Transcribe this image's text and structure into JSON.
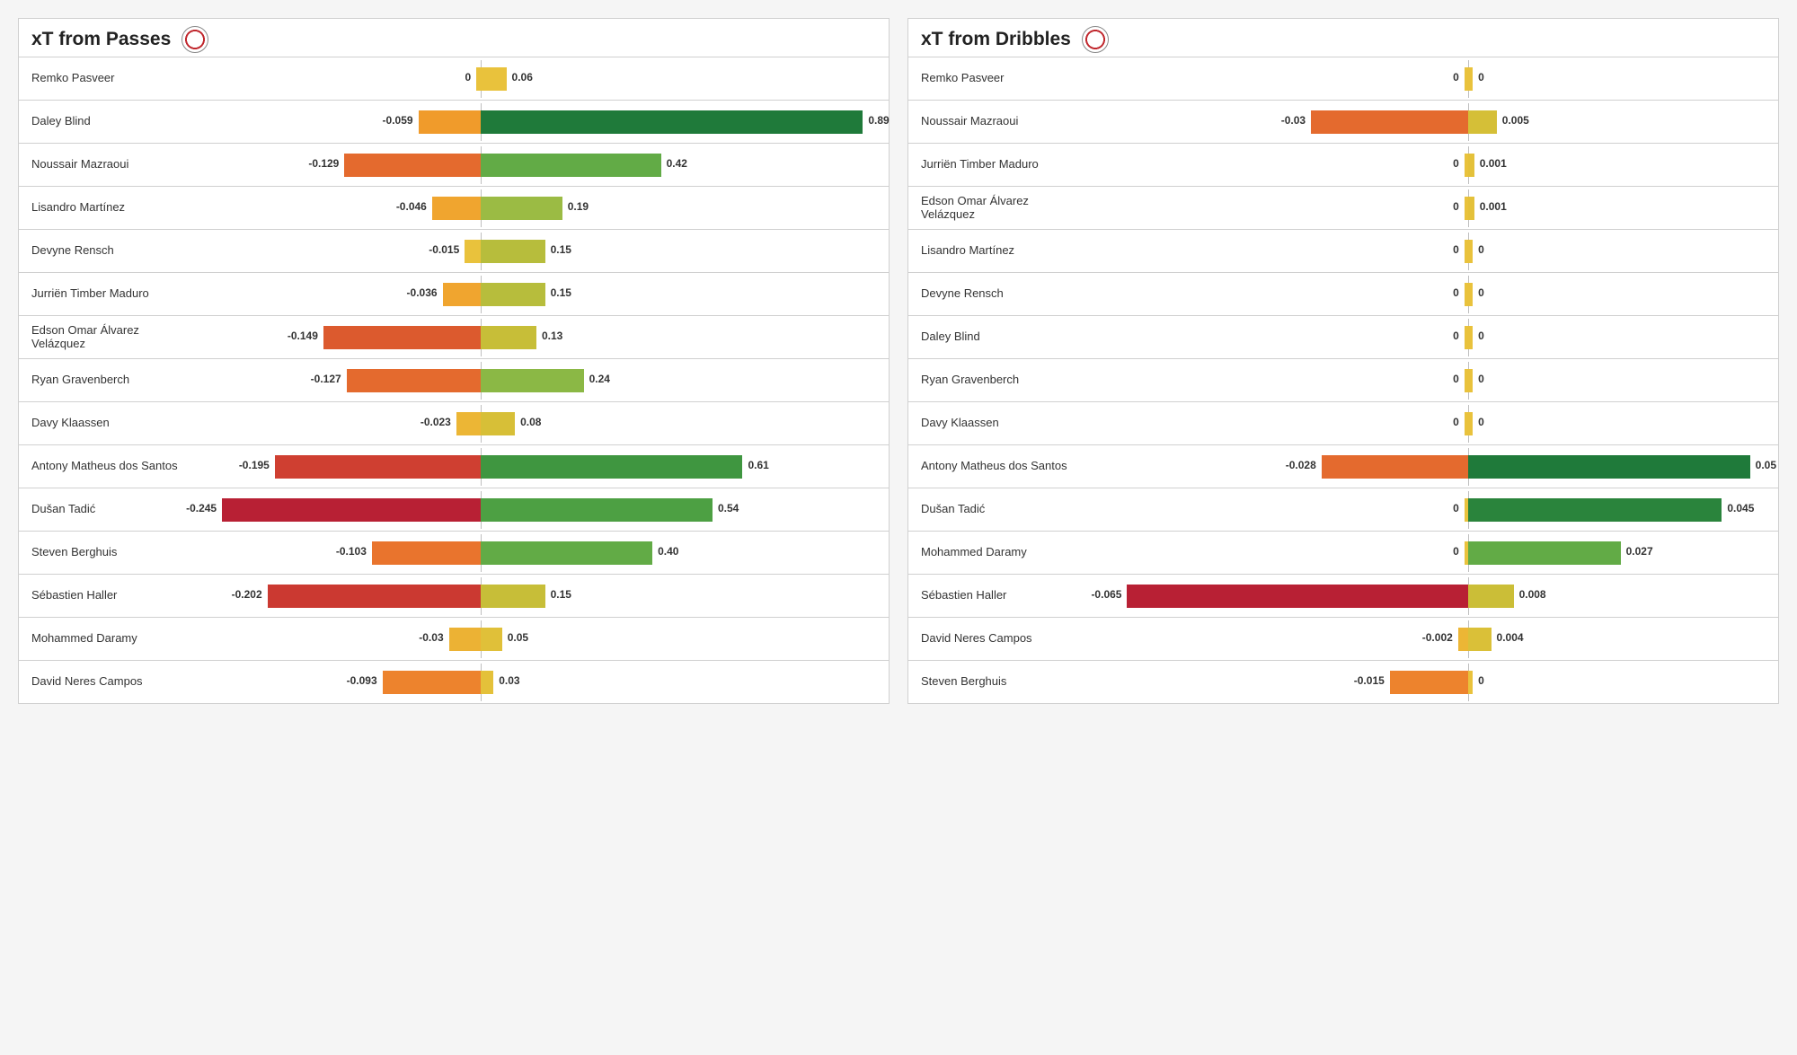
{
  "panels": [
    {
      "title": "xT from Passes",
      "negMax": 0.28,
      "posMax": 0.95,
      "axisFrac": 0.42,
      "rows": [
        {
          "name": "Remko Pasveer",
          "neg": 0,
          "negLabel": "0",
          "pos": 0.06,
          "posLabel": "0.06",
          "negColor": "#e9c23c",
          "posColor": "#e9c23c"
        },
        {
          "name": "Daley Blind",
          "neg": 0.059,
          "negLabel": "-0.059",
          "pos": 0.89,
          "posLabel": "0.89",
          "negColor": "#f09b2b",
          "posColor": "#1f7a3a"
        },
        {
          "name": "Noussair Mazraoui",
          "neg": 0.129,
          "negLabel": "-0.129",
          "pos": 0.42,
          "posLabel": "0.42",
          "negColor": "#e46a2e",
          "posColor": "#62ab46"
        },
        {
          "name": "Lisandro Martínez",
          "neg": 0.046,
          "negLabel": "-0.046",
          "pos": 0.19,
          "posLabel": "0.19",
          "negColor": "#f0a52f",
          "posColor": "#9bbb44"
        },
        {
          "name": "Devyne Rensch",
          "neg": 0.015,
          "negLabel": "-0.015",
          "pos": 0.15,
          "posLabel": "0.15",
          "negColor": "#e9c23c",
          "posColor": "#b7bd3c"
        },
        {
          "name": "Jurriën Timber Maduro",
          "neg": 0.036,
          "negLabel": "-0.036",
          "pos": 0.15,
          "posLabel": "0.15",
          "negColor": "#f0a52f",
          "posColor": "#b7bd3c"
        },
        {
          "name": "Edson Omar Álvarez Velázquez",
          "neg": 0.149,
          "negLabel": "-0.149",
          "pos": 0.13,
          "posLabel": "0.13",
          "negColor": "#dc5a2e",
          "posColor": "#c7be38"
        },
        {
          "name": "Ryan Gravenberch",
          "neg": 0.127,
          "negLabel": "-0.127",
          "pos": 0.24,
          "posLabel": "0.24",
          "negColor": "#e46a2e",
          "posColor": "#8bb845"
        },
        {
          "name": "Davy Klaassen",
          "neg": 0.023,
          "negLabel": "-0.023",
          "pos": 0.08,
          "posLabel": "0.08",
          "negColor": "#ecb635",
          "posColor": "#d7bf37"
        },
        {
          "name": "Antony Matheus dos Santos",
          "neg": 0.195,
          "negLabel": "-0.195",
          "pos": 0.61,
          "posLabel": "0.61",
          "negColor": "#cf3f31",
          "posColor": "#3f9640"
        },
        {
          "name": "Dušan Tadić",
          "neg": 0.245,
          "negLabel": "-0.245",
          "pos": 0.54,
          "posLabel": "0.54",
          "negColor": "#b82034",
          "posColor": "#4da043"
        },
        {
          "name": "Steven Berghuis",
          "neg": 0.103,
          "negLabel": "-0.103",
          "pos": 0.4,
          "posLabel": "0.40",
          "negColor": "#e9742d",
          "posColor": "#62ab46"
        },
        {
          "name": "Sébastien Haller",
          "neg": 0.202,
          "negLabel": "-0.202",
          "pos": 0.15,
          "posLabel": "0.15",
          "negColor": "#cb3931",
          "posColor": "#c7be38"
        },
        {
          "name": "Mohammed Daramy",
          "neg": 0.03,
          "negLabel": "-0.03",
          "pos": 0.05,
          "posLabel": "0.05",
          "negColor": "#ecb234",
          "posColor": "#e0c039"
        },
        {
          "name": "David Neres Campos",
          "neg": 0.093,
          "negLabel": "-0.093",
          "pos": 0.03,
          "posLabel": "0.03",
          "negColor": "#ed832d",
          "posColor": "#e4c13a"
        }
      ]
    },
    {
      "title": "xT from Dribbles",
      "negMax": 0.075,
      "posMax": 0.055,
      "axisFrac": 0.56,
      "rows": [
        {
          "name": "Remko Pasveer",
          "neg": 0,
          "negLabel": "0",
          "pos": 0,
          "posLabel": "0",
          "negColor": "#e9c23c",
          "posColor": "#e9c23c"
        },
        {
          "name": "Noussair Mazraoui",
          "neg": 0.03,
          "negLabel": "-0.03",
          "pos": 0.005,
          "posLabel": "0.005",
          "negColor": "#e46a2e",
          "posColor": "#d5bf37"
        },
        {
          "name": "Jurriën Timber Maduro",
          "neg": 0,
          "negLabel": "0",
          "pos": 0.001,
          "posLabel": "0.001",
          "negColor": "#e9c23c",
          "posColor": "#e4c13a"
        },
        {
          "name": "Edson Omar Álvarez Velázquez",
          "neg": 0,
          "negLabel": "0",
          "pos": 0.001,
          "posLabel": "0.001",
          "negColor": "#e9c23c",
          "posColor": "#e4c13a"
        },
        {
          "name": "Lisandro Martínez",
          "neg": 0,
          "negLabel": "0",
          "pos": 0,
          "posLabel": "0",
          "negColor": "#e9c23c",
          "posColor": "#e9c23c"
        },
        {
          "name": "Devyne Rensch",
          "neg": 0,
          "negLabel": "0",
          "pos": 0,
          "posLabel": "0",
          "negColor": "#e9c23c",
          "posColor": "#e9c23c"
        },
        {
          "name": "Daley Blind",
          "neg": 0,
          "negLabel": "0",
          "pos": 0,
          "posLabel": "0",
          "negColor": "#e9c23c",
          "posColor": "#e9c23c"
        },
        {
          "name": "Ryan Gravenberch",
          "neg": 0,
          "negLabel": "0",
          "pos": 0,
          "posLabel": "0",
          "negColor": "#e9c23c",
          "posColor": "#e9c23c"
        },
        {
          "name": "Davy Klaassen",
          "neg": 0,
          "negLabel": "0",
          "pos": 0,
          "posLabel": "0",
          "negColor": "#e9c23c",
          "posColor": "#e9c23c"
        },
        {
          "name": "Antony Matheus dos Santos",
          "neg": 0.028,
          "negLabel": "-0.028",
          "pos": 0.05,
          "posLabel": "0.05",
          "negColor": "#e46a2e",
          "posColor": "#1f7a3a"
        },
        {
          "name": "Dušan Tadić",
          "neg": 0,
          "negLabel": "0",
          "pos": 0.045,
          "posLabel": "0.045",
          "negColor": "#e9c23c",
          "posColor": "#2a843c"
        },
        {
          "name": "Mohammed Daramy",
          "neg": 0,
          "negLabel": "0",
          "pos": 0.027,
          "posLabel": "0.027",
          "negColor": "#e9c23c",
          "posColor": "#62ab46"
        },
        {
          "name": "Sébastien Haller",
          "neg": 0.065,
          "negLabel": "-0.065",
          "pos": 0.008,
          "posLabel": "0.008",
          "negColor": "#b82034",
          "posColor": "#cbbe37"
        },
        {
          "name": "David Neres Campos",
          "neg": 0.002,
          "negLabel": "-0.002",
          "pos": 0.004,
          "posLabel": "0.004",
          "negColor": "#ecb635",
          "posColor": "#dac038"
        },
        {
          "name": "Steven Berghuis",
          "neg": 0.015,
          "negLabel": "-0.015",
          "pos": 0,
          "posLabel": "0",
          "negColor": "#ed832d",
          "posColor": "#e9c23c"
        }
      ]
    }
  ],
  "style": {
    "bg": "#f5f5f5",
    "panelBg": "#ffffff",
    "border": "#d0d0d0",
    "text": "#333333",
    "titleSize": 21,
    "nameSize": 13,
    "labelSize": 12,
    "minBarPx": 3
  }
}
